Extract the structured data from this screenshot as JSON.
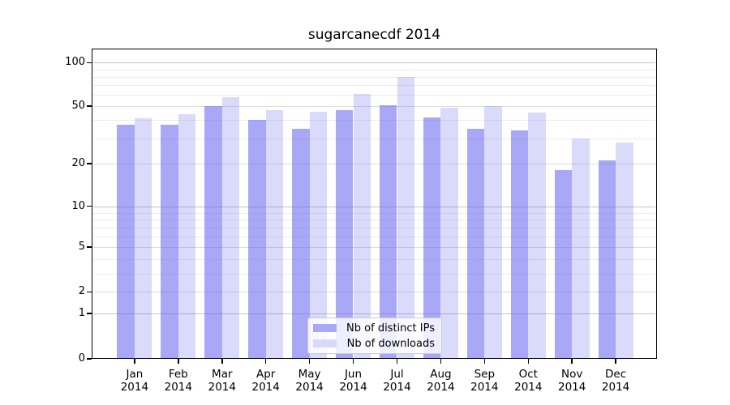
{
  "title": "sugarcanecdf 2014",
  "chart_data": {
    "type": "bar",
    "title": "sugarcanecdf 2014",
    "categories": [
      "Jan 2014",
      "Feb 2014",
      "Mar 2014",
      "Apr 2014",
      "May 2014",
      "Jun 2014",
      "Jul 2014",
      "Aug 2014",
      "Sep 2014",
      "Oct 2014",
      "Nov 2014",
      "Dec 2014"
    ],
    "month_line1": [
      "Jan",
      "Feb",
      "Mar",
      "Apr",
      "May",
      "Jun",
      "Jul",
      "Aug",
      "Sep",
      "Oct",
      "Nov",
      "Dec"
    ],
    "month_line2": "2014",
    "series": [
      {
        "name": "Nb of distinct IPs",
        "color": "#a8a8f6",
        "values": [
          37,
          37,
          50,
          40,
          35,
          47,
          51,
          42,
          35,
          34,
          18,
          21
        ]
      },
      {
        "name": "Nb of downloads",
        "color": "#d9d9fb",
        "values": [
          41,
          44,
          58,
          47,
          46,
          61,
          80,
          49,
          50,
          45,
          30,
          28
        ]
      }
    ],
    "ylabel": "",
    "xlabel": "",
    "y_axis": {
      "scale": "symlog",
      "tick_values": [
        0,
        1,
        2,
        5,
        10,
        20,
        50,
        100
      ],
      "gridlines_strong": [
        1,
        10,
        100
      ],
      "gridlines_medium": [
        2,
        5,
        20,
        50
      ],
      "gridlines_faint": [
        3,
        4,
        6,
        7,
        8,
        9,
        30,
        40,
        60,
        70,
        80,
        90
      ]
    },
    "grid": true,
    "legend_position": "bottom-center"
  },
  "legend": {
    "items": [
      {
        "label": "Nb of distinct IPs",
        "color": "#a8a8f6"
      },
      {
        "label": "Nb of downloads",
        "color": "#d9d9fb"
      }
    ]
  }
}
